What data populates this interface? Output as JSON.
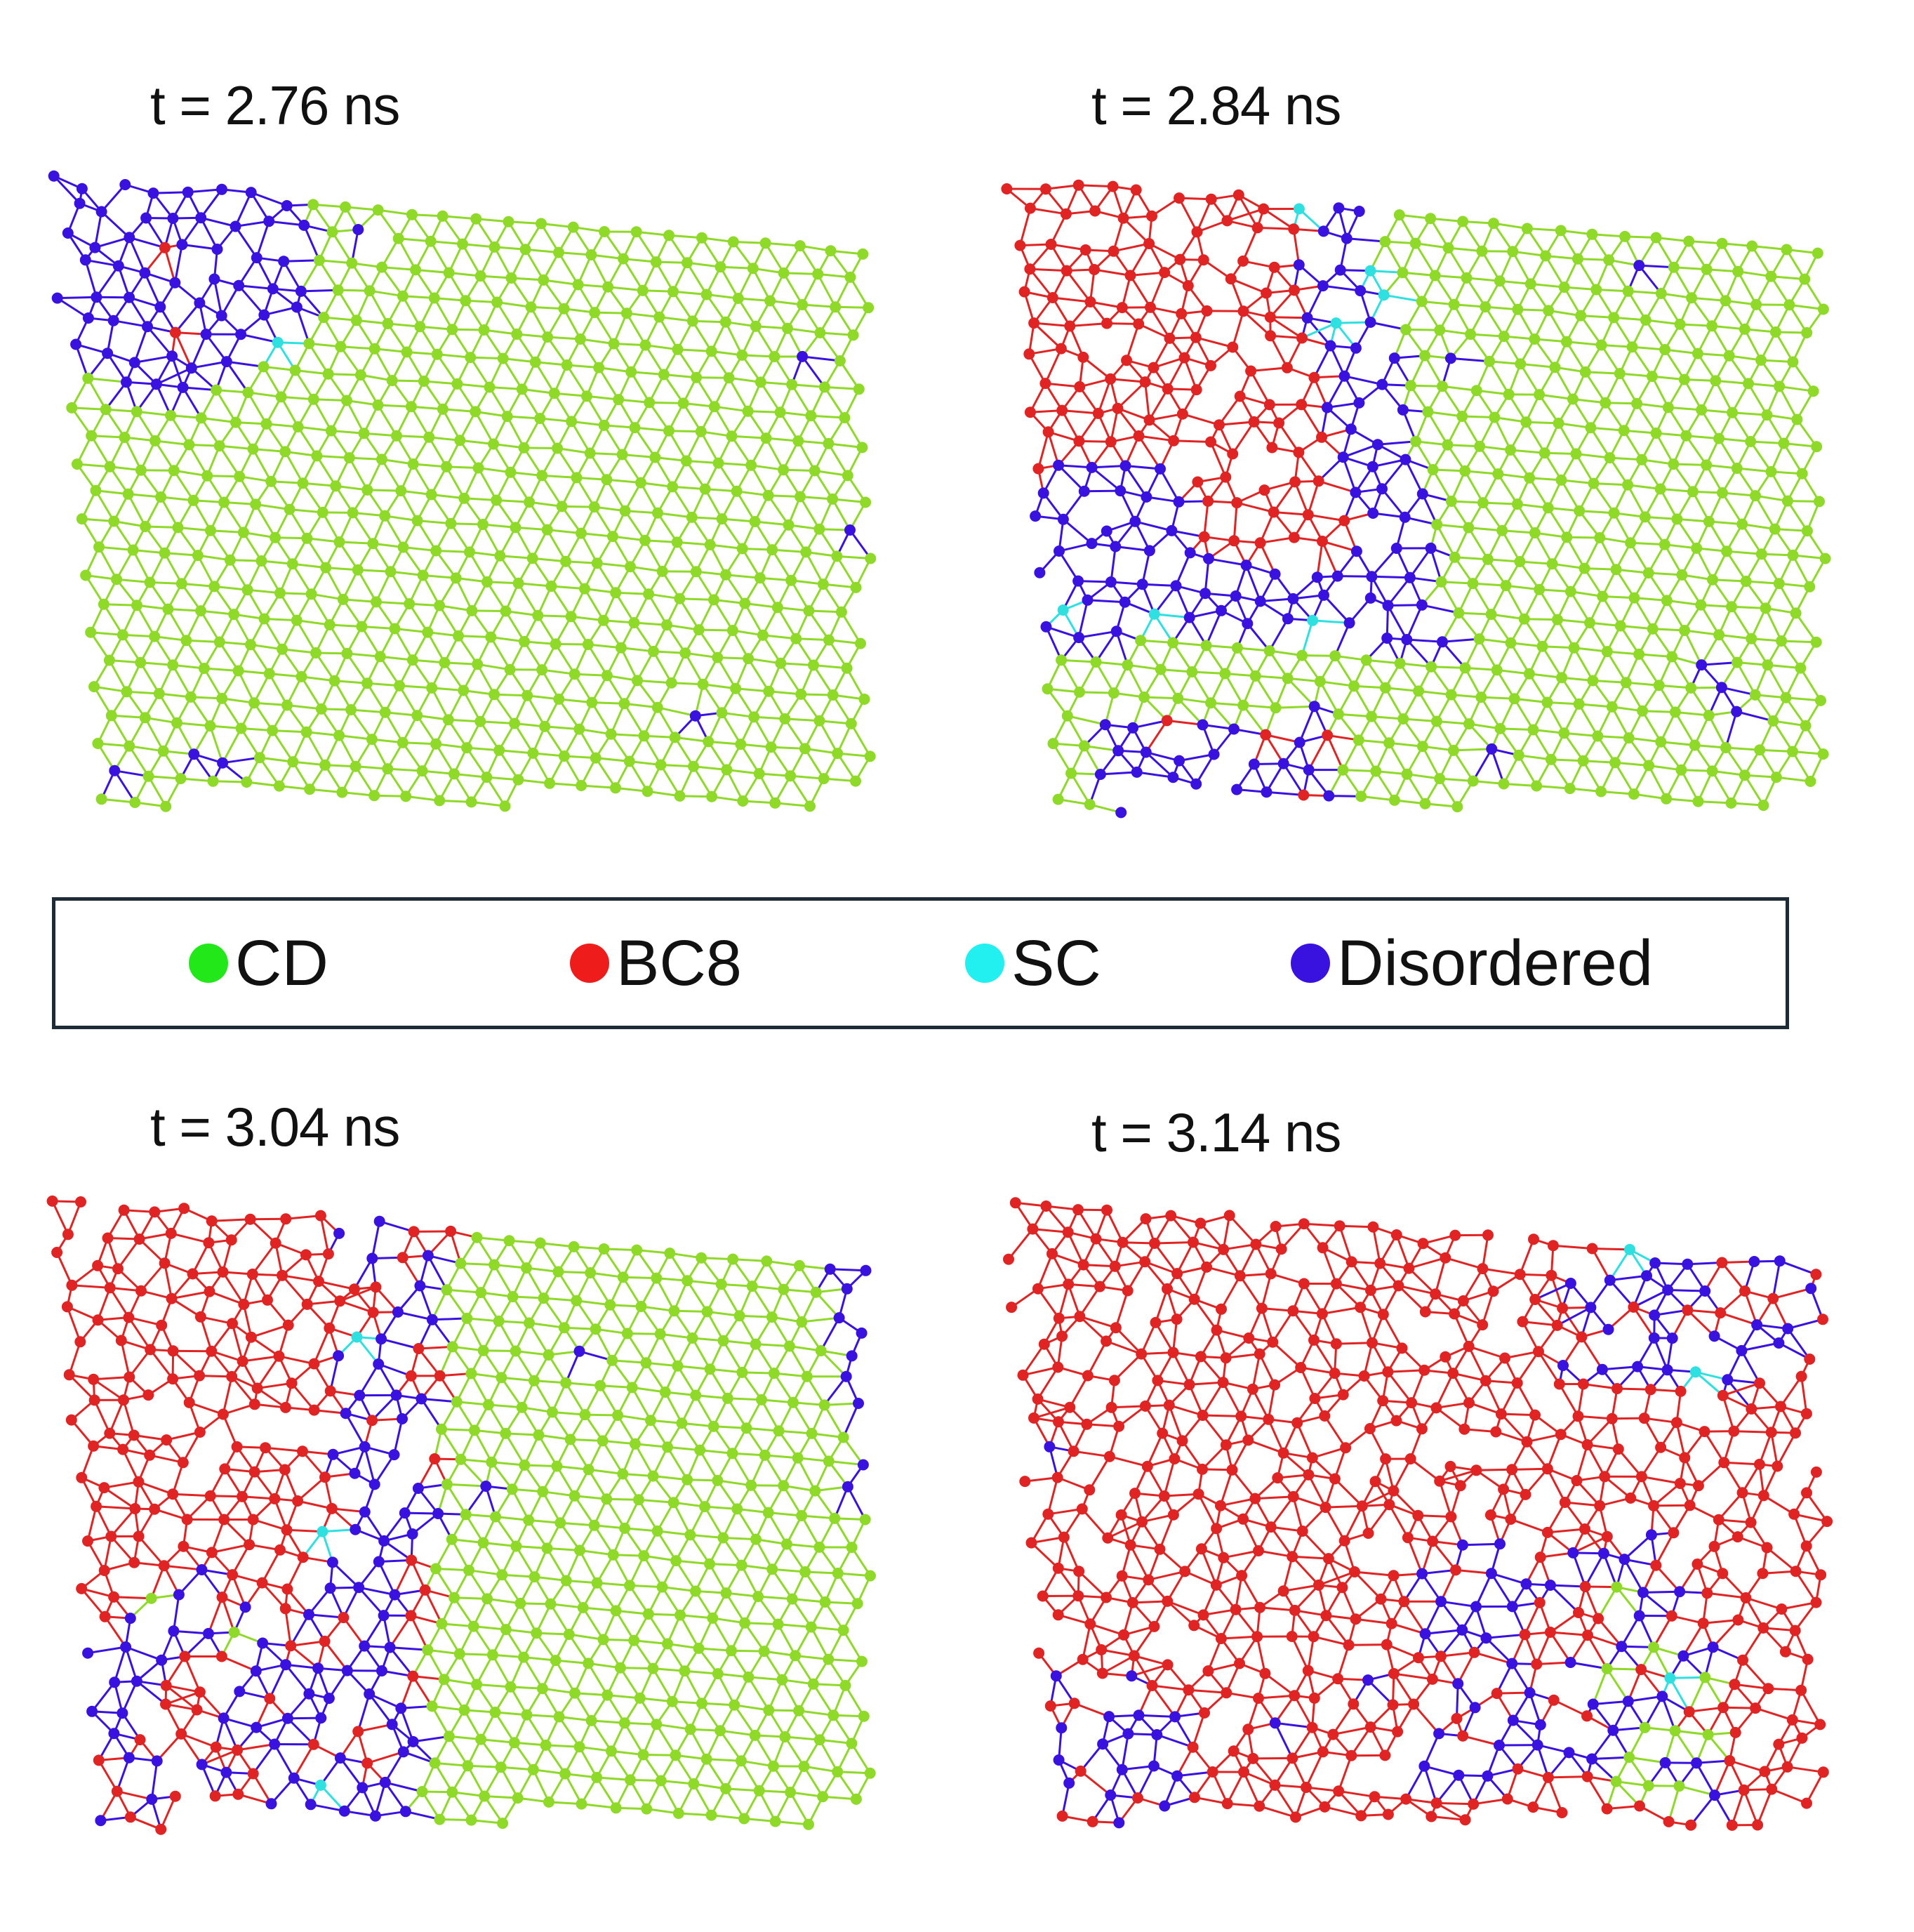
{
  "panels": [
    {
      "title": "t = 2.76 ns"
    },
    {
      "title": "t = 2.84 ns"
    },
    {
      "title": "t = 3.04 ns"
    },
    {
      "title": "t = 3.14 ns"
    }
  ],
  "legend": {
    "items": [
      {
        "label": "CD",
        "color": "#22e81a"
      },
      {
        "label": "BC8",
        "color": "#ef1c1c"
      },
      {
        "label": "SC",
        "color": "#22f0f0"
      },
      {
        "label": "Disordered",
        "color": "#3a12e0"
      }
    ]
  },
  "colors": {
    "cd": "#8fd928",
    "bc8": "#e02424",
    "sc": "#2ee0e0",
    "disordered": "#3a12e0"
  }
}
